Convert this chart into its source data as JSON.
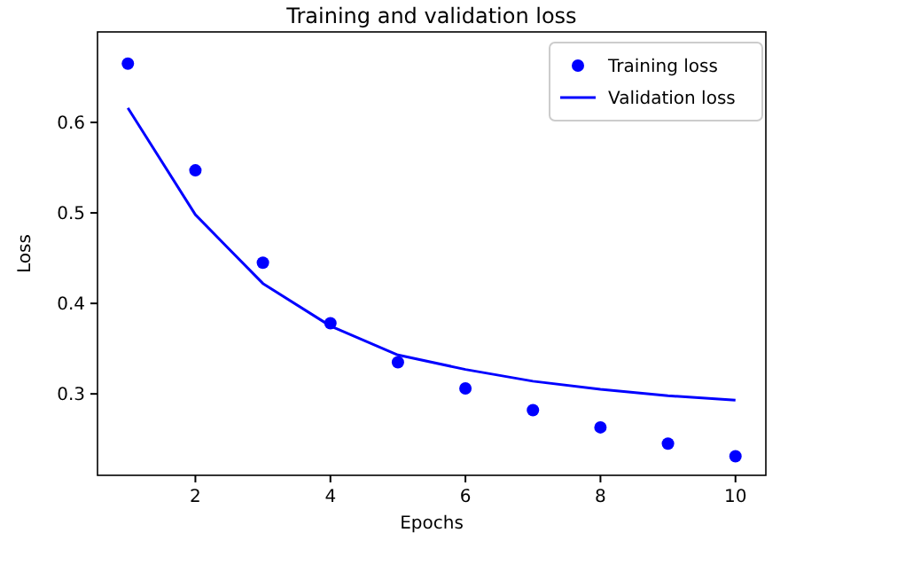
{
  "chart_data": {
    "type": "line",
    "title": "Training and validation loss",
    "xlabel": "Epochs",
    "ylabel": "Loss",
    "x": [
      1,
      2,
      3,
      4,
      5,
      6,
      7,
      8,
      9,
      10
    ],
    "series": [
      {
        "name": "Training loss",
        "type": "scatter",
        "color": "#0000ff",
        "marker": "circle",
        "values": [
          0.665,
          0.547,
          0.445,
          0.378,
          0.335,
          0.306,
          0.282,
          0.263,
          0.245,
          0.231
        ]
      },
      {
        "name": "Validation loss",
        "color": "#0000ff",
        "marker": "none",
        "line_style": "solid",
        "values": [
          0.616,
          0.498,
          0.422,
          0.375,
          0.343,
          0.327,
          0.314,
          0.305,
          0.298,
          0.293
        ]
      }
    ],
    "xlim": [
      0.55,
      10.45
    ],
    "ylim": [
      0.21,
      0.7
    ],
    "xticks": [
      2,
      4,
      6,
      8,
      10
    ],
    "yticks": [
      0.3,
      0.4,
      0.5,
      0.6
    ],
    "grid": false,
    "legend": "top right"
  }
}
